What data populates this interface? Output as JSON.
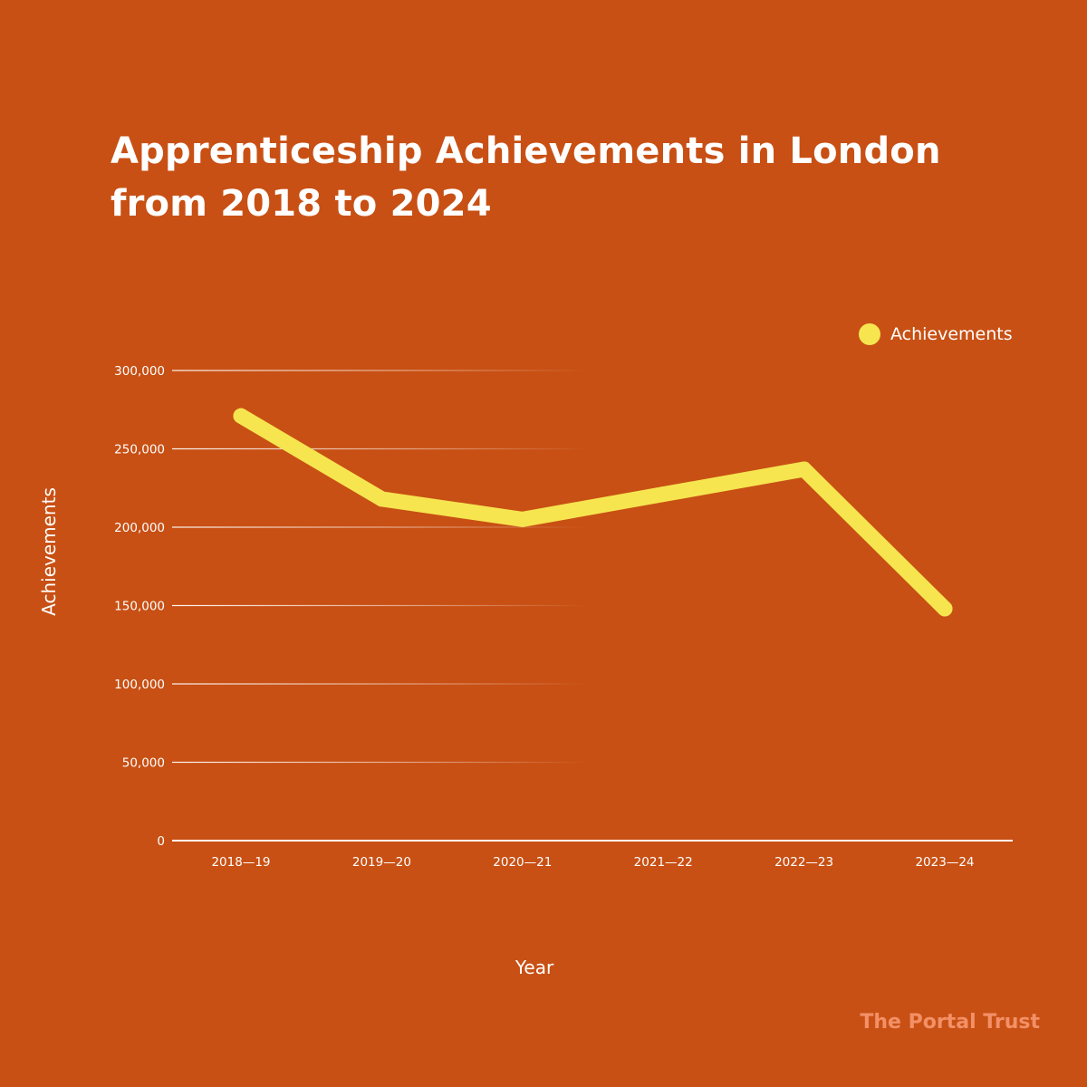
{
  "title_lines": [
    "Apprenticeship Achievements in London",
    "from 2018 to 2024"
  ],
  "brand": "The Portal Trust",
  "colors": {
    "background": "#c85014",
    "line": "#f6e54f",
    "text": "#ffffff",
    "grid": "#ffffff",
    "brand": "#f39067"
  },
  "chart_data": {
    "type": "line",
    "title": "Apprenticeship Achievements in London from 2018 to 2024",
    "xlabel": "Year",
    "ylabel": "Achievements",
    "categories": [
      "2018—19",
      "2019—20",
      "2020—21",
      "2021—22",
      "2022—23",
      "2023—24"
    ],
    "series": [
      {
        "name": "Achievements",
        "values": [
          271000,
          218000,
          205000,
          221000,
          237000,
          148000
        ]
      }
    ],
    "ylim": [
      0,
      300000
    ],
    "yticks": [
      0,
      50000,
      100000,
      150000,
      200000,
      250000,
      300000
    ],
    "ytick_labels": [
      "0",
      "50,000",
      "100,000",
      "150,000",
      "200,000",
      "250,000",
      "300,000"
    ],
    "grid": true,
    "legend": "top-right"
  }
}
